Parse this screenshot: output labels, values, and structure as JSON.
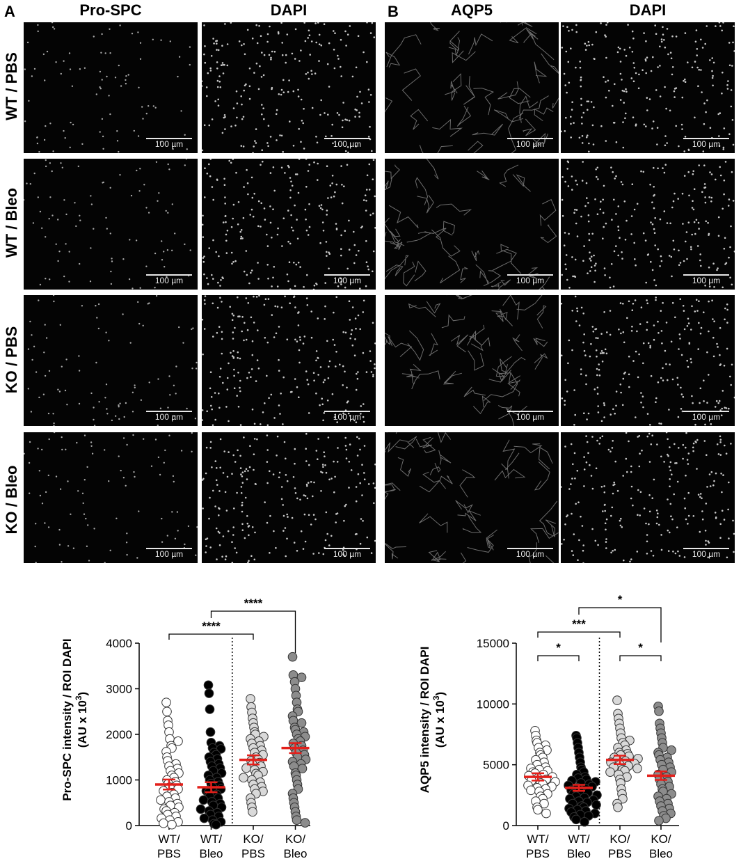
{
  "figure": {
    "panel_a_letter": "A",
    "panel_b_letter": "B",
    "columns": [
      "Pro-SPC",
      "DAPI",
      "AQP5",
      "DAPI"
    ],
    "rows": [
      "WT / PBS",
      "WT / Bleo",
      "KO / PBS",
      "KO / Bleo"
    ],
    "scale_bar_label": "100 µm"
  },
  "chart_data": [
    {
      "type": "scatter",
      "ylabel_line1": "Pro-SPC intensity / ROI DAPI",
      "ylabel_line2": "(AU x 10",
      "ylabel_sup": "3",
      "ylabel_close": ")",
      "ylim": [
        0,
        4000
      ],
      "yticks": [
        0,
        1000,
        2000,
        3000,
        4000
      ],
      "categories": [
        "WT/\nPBS",
        "WT/\nBleo",
        "KO/\nPBS",
        "KO/\nBleo"
      ],
      "category_lines": [
        [
          "WT/",
          "PBS"
        ],
        [
          "WT/",
          "Bleo"
        ],
        [
          "KO/",
          "PBS"
        ],
        [
          "KO/",
          "Bleo"
        ]
      ],
      "fill_colors": [
        "#ffffff",
        "#000000",
        "#d9d9d9",
        "#8c8c8c"
      ],
      "means": [
        900,
        840,
        1440,
        1700
      ],
      "sem": [
        110,
        110,
        100,
        110
      ],
      "mean_color": "#e3201b",
      "significance": [
        {
          "from": 0,
          "to": 2,
          "label": "****"
        },
        {
          "from": 1,
          "to": 3,
          "label": "****"
        }
      ],
      "series": [
        {
          "values": [
            2700,
            2500,
            2300,
            2200,
            2050,
            1900,
            1850,
            1750,
            1700,
            1620,
            1500,
            1420,
            1350,
            1300,
            1250,
            1200,
            1150,
            1100,
            1050,
            1000,
            960,
            920,
            880,
            840,
            800,
            760,
            720,
            680,
            640,
            600,
            560,
            520,
            480,
            440,
            400,
            360,
            320,
            280,
            240,
            200,
            160,
            120,
            80,
            50,
            20
          ]
        },
        {
          "values": [
            3080,
            2900,
            2550,
            2050,
            1820,
            1750,
            1700,
            1680,
            1600,
            1550,
            1500,
            1460,
            1400,
            1350,
            1300,
            1260,
            1200,
            1150,
            1100,
            1050,
            1000,
            960,
            920,
            880,
            840,
            800,
            760,
            720,
            680,
            640,
            600,
            560,
            520,
            480,
            440,
            400,
            360,
            320,
            280,
            240,
            200,
            160,
            120,
            80,
            40,
            20
          ]
        },
        {
          "values": [
            2780,
            2600,
            2480,
            2350,
            2250,
            2150,
            2050,
            2000,
            1950,
            1900,
            1850,
            1800,
            1750,
            1700,
            1650,
            1600,
            1550,
            1500,
            1450,
            1420,
            1380,
            1340,
            1300,
            1260,
            1220,
            1180,
            1140,
            1100,
            1050,
            1000,
            950,
            900,
            850,
            800,
            750,
            700,
            600,
            500,
            400,
            300
          ]
        },
        {
          "values": [
            3700,
            3300,
            3250,
            3150,
            3000,
            2850,
            2700,
            2550,
            2500,
            2400,
            2300,
            2250,
            2150,
            2100,
            2050,
            2000,
            1950,
            1900,
            1850,
            1800,
            1750,
            1700,
            1650,
            1600,
            1550,
            1500,
            1450,
            1400,
            1350,
            1300,
            1250,
            1150,
            1100,
            1000,
            900,
            800,
            700,
            600,
            500,
            400,
            300,
            200,
            120,
            60
          ]
        }
      ]
    },
    {
      "type": "scatter",
      "ylabel_line1": "AQP5 intensity / ROI DAPI",
      "ylabel_line2": "(AU x 10",
      "ylabel_sup": "3",
      "ylabel_close": ")",
      "ylim": [
        0,
        15000
      ],
      "yticks": [
        0,
        5000,
        10000,
        15000
      ],
      "categories": [
        "WT/\nPBS",
        "WT/\nBleo",
        "KO/\nPBS",
        "KO/\nBleo"
      ],
      "category_lines": [
        [
          "WT/",
          "PBS"
        ],
        [
          "WT/",
          "Bleo"
        ],
        [
          "KO/",
          "PBS"
        ],
        [
          "KO/",
          "Bleo"
        ]
      ],
      "fill_colors": [
        "#ffffff",
        "#000000",
        "#d9d9d9",
        "#8c8c8c"
      ],
      "means": [
        4000,
        3100,
        5400,
        4100
      ],
      "sem": [
        300,
        250,
        350,
        350
      ],
      "mean_color": "#e3201b",
      "significance": [
        {
          "from": 0,
          "to": 1,
          "label": "*"
        },
        {
          "from": 0,
          "to": 2,
          "label": "***"
        },
        {
          "from": 1,
          "to": 3,
          "label": "*"
        },
        {
          "from": 2,
          "to": 3,
          "label": "*"
        }
      ],
      "series": [
        {
          "values": [
            7800,
            7400,
            7000,
            6800,
            6600,
            6400,
            6200,
            6000,
            5800,
            5600,
            5400,
            5200,
            5000,
            4800,
            4700,
            4600,
            4500,
            4400,
            4300,
            4200,
            4100,
            4000,
            3900,
            3800,
            3700,
            3600,
            3500,
            3400,
            3300,
            3200,
            3100,
            3000,
            2900,
            2800,
            2600,
            2400,
            2200,
            2000,
            1800,
            1500,
            1300,
            1000
          ]
        },
        {
          "values": [
            7400,
            7200,
            6800,
            6400,
            6000,
            5600,
            5200,
            4800,
            4600,
            4400,
            4200,
            4000,
            3900,
            3800,
            3700,
            3600,
            3500,
            3400,
            3300,
            3200,
            3100,
            3000,
            2900,
            2800,
            2700,
            2600,
            2500,
            2400,
            2300,
            2200,
            2100,
            2000,
            1900,
            1800,
            1700,
            1600,
            1500,
            1400,
            1300,
            1200,
            1100,
            1000,
            900,
            800,
            700,
            500,
            300
          ]
        },
        {
          "values": [
            10300,
            9200,
            8800,
            8400,
            8000,
            7600,
            7200,
            7000,
            6800,
            6600,
            6400,
            6200,
            6000,
            5900,
            5800,
            5700,
            5600,
            5500,
            5400,
            5300,
            5200,
            5100,
            5000,
            4900,
            4800,
            4700,
            4600,
            4500,
            4400,
            4200,
            4000,
            3800,
            3500,
            3000,
            2600,
            2200,
            1800,
            1500
          ]
        },
        {
          "values": [
            9800,
            9400,
            8400,
            8000,
            7600,
            7200,
            6800,
            6400,
            6200,
            6000,
            5800,
            5600,
            5400,
            5200,
            5000,
            4800,
            4600,
            4400,
            4200,
            4000,
            3800,
            3600,
            3400,
            3200,
            3000,
            2800,
            2600,
            2400,
            2200,
            2000,
            1800,
            1600,
            1400,
            1200,
            1000,
            800,
            600,
            400
          ]
        }
      ]
    }
  ]
}
